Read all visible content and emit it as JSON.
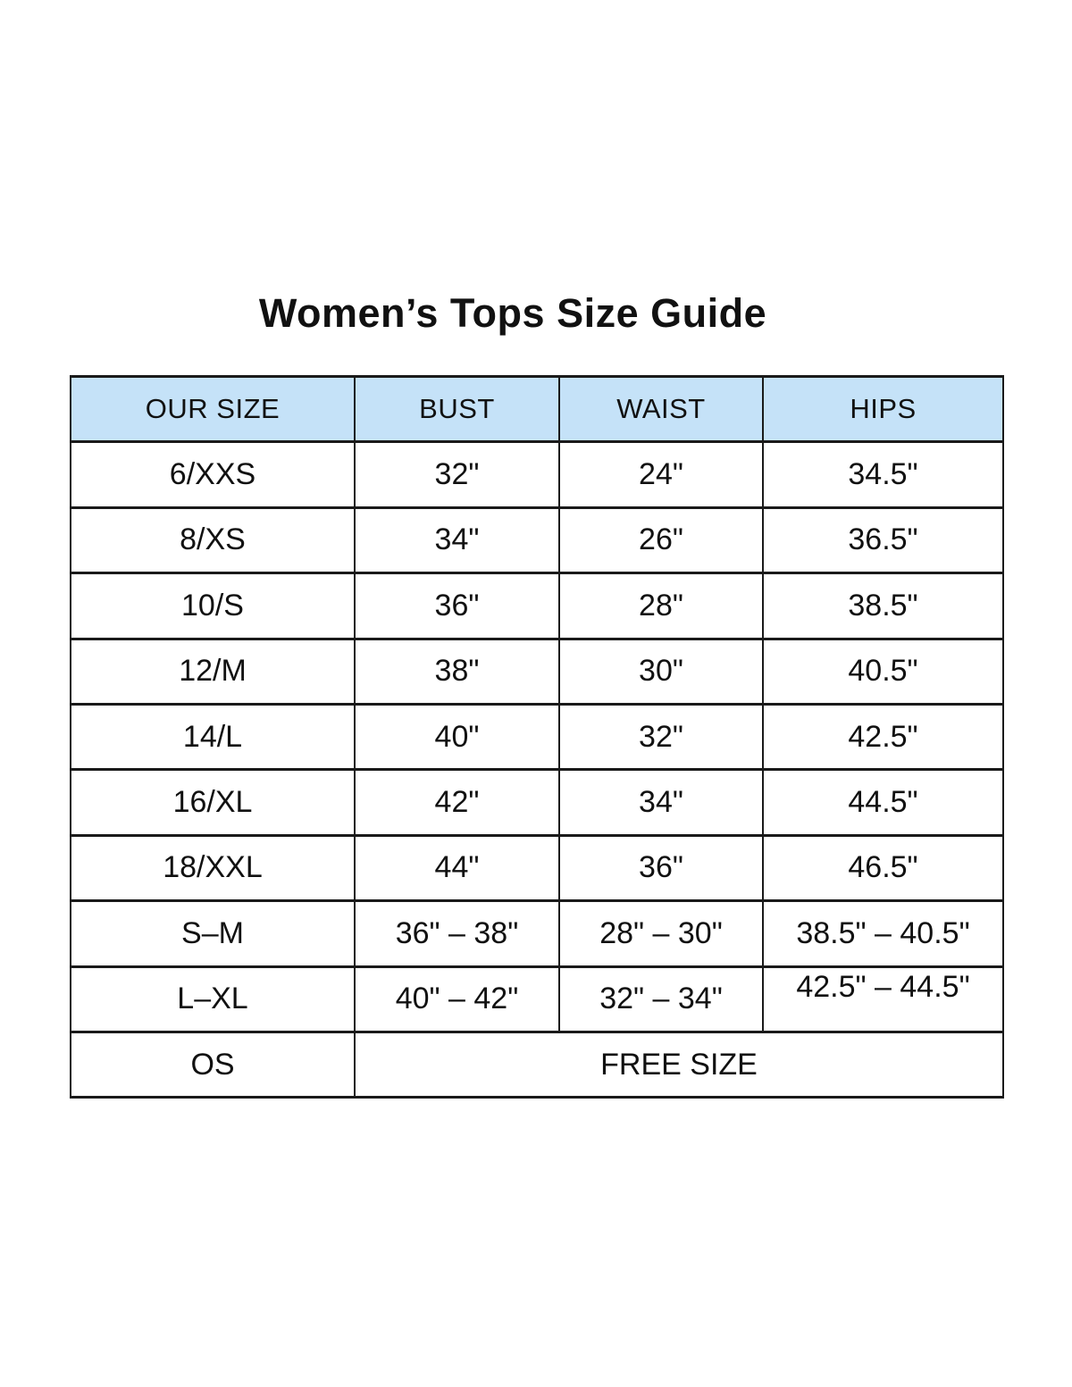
{
  "title": "Women’s Tops Size Guide",
  "colors": {
    "background": "#ffffff",
    "header_bg": "#c5e2f8",
    "border": "#1a1a1a",
    "text": "#111111"
  },
  "chart_data": {
    "type": "table",
    "title": "Women’s Tops Size Guide",
    "columns": [
      "OUR SIZE",
      "BUST",
      "WAIST",
      "HIPS"
    ],
    "rows": [
      {
        "cells": [
          "6/XXS",
          "32\"",
          "24\"",
          "34.5\""
        ]
      },
      {
        "cells": [
          "8/XS",
          "34\"",
          "26\"",
          "36.5\""
        ]
      },
      {
        "cells": [
          "10/S",
          "36\"",
          "28\"",
          "38.5\""
        ]
      },
      {
        "cells": [
          "12/M",
          "38\"",
          "30\"",
          "40.5\""
        ]
      },
      {
        "cells": [
          "14/L",
          "40\"",
          "32\"",
          "42.5\""
        ]
      },
      {
        "cells": [
          "16/XL",
          "42\"",
          "34\"",
          "44.5\""
        ]
      },
      {
        "cells": [
          "18/XXL",
          "44\"",
          "36\"",
          "46.5\""
        ]
      },
      {
        "cells": [
          "S–M",
          "36\" – 38\"",
          "28\" – 30\"",
          "38.5\" – 40.5\""
        ]
      },
      {
        "cells": [
          "L–XL",
          "40\" – 42\"",
          "32\" – 34\"",
          "42.5\" – 44.5\""
        ]
      },
      {
        "cells": [
          "OS",
          "FREE SIZE"
        ],
        "colspans": [
          1,
          3
        ]
      }
    ]
  }
}
